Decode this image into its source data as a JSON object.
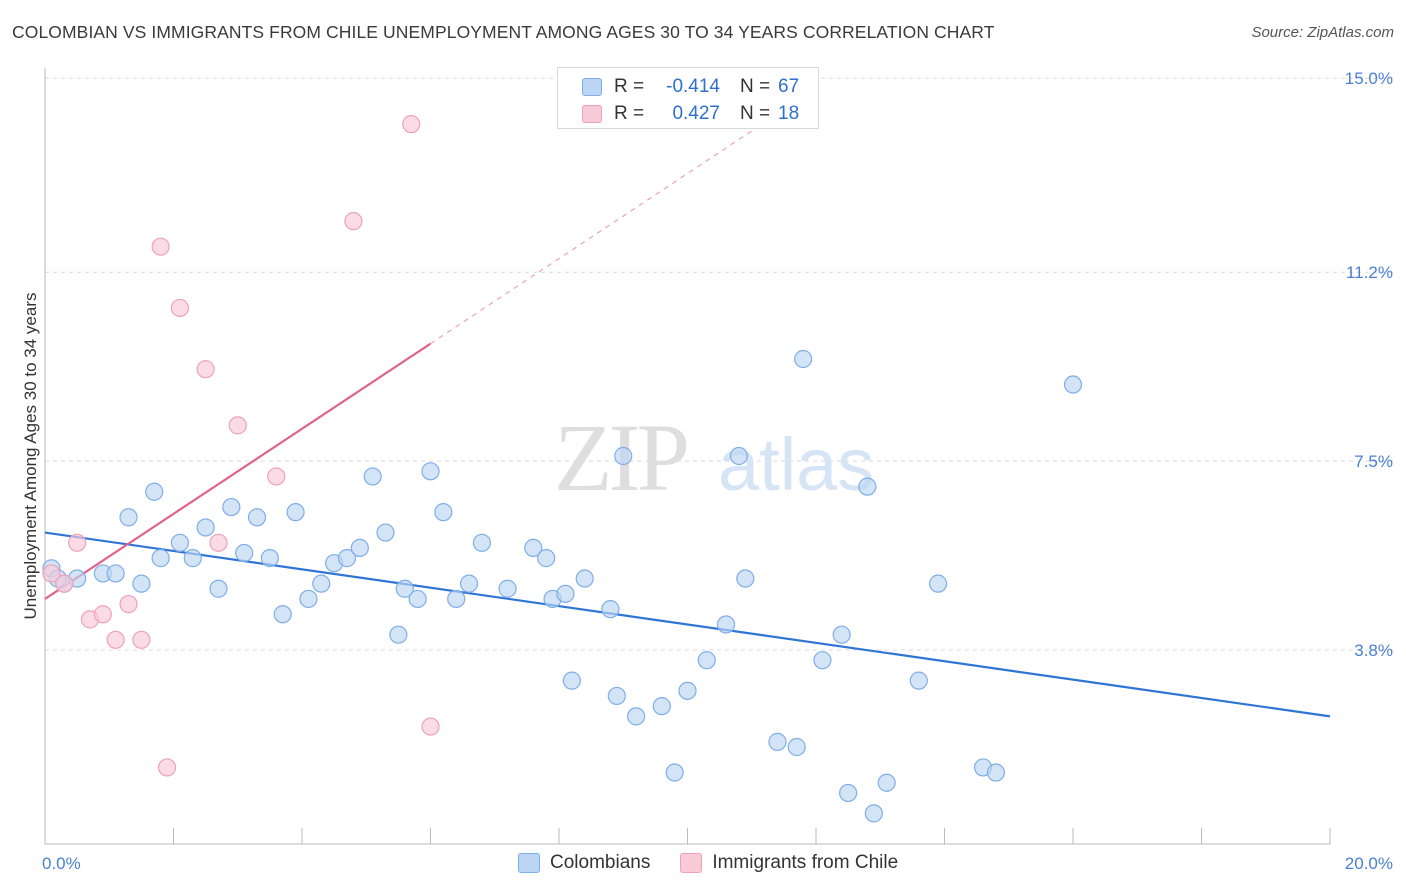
{
  "header": {
    "title": "COLOMBIAN VS IMMIGRANTS FROM CHILE UNEMPLOYMENT AMONG AGES 30 TO 34 YEARS CORRELATION CHART",
    "source": "Source: ZipAtlas.com"
  },
  "watermark": {
    "zip": "ZIP",
    "atlas": "atlas"
  },
  "legend": {
    "rows": [
      {
        "r_label": "R =",
        "r_value": "-0.414",
        "n_label": "N =",
        "n_value": "67",
        "color": "#7eaee8",
        "fill": "#bcd5f3"
      },
      {
        "r_label": "R =",
        "r_value": "0.427",
        "n_label": "N =",
        "n_value": "18",
        "color": "#f0a0bb",
        "fill": "#f9cad8"
      }
    ]
  },
  "bottom_legend": {
    "items": [
      {
        "label": "Colombians",
        "color": "#7eaee8",
        "fill": "#bcd5f3"
      },
      {
        "label": "Immigrants from Chile",
        "color": "#f0a0bb",
        "fill": "#f9cad8"
      }
    ]
  },
  "chart_data": {
    "type": "scatter",
    "title": "COLOMBIAN VS IMMIGRANTS FROM CHILE UNEMPLOYMENT AMONG AGES 30 TO 34 YEARS CORRELATION CHART",
    "xlabel": "",
    "ylabel": "Unemployment Among Ages 30 to 34 years",
    "xlim": [
      0,
      20
    ],
    "ylim": [
      0,
      15.2
    ],
    "x_tick_labels": [
      "0.0%",
      "20.0%"
    ],
    "y_ticks": [
      3.8,
      7.5,
      11.2,
      15.0
    ],
    "y_tick_labels": [
      "3.8%",
      "7.5%",
      "11.2%",
      "15.0%"
    ],
    "grid": true,
    "series": [
      {
        "name": "Colombians",
        "color": "#7eaee8",
        "fill": "#bcd5f3",
        "line_color": "#2f74d6",
        "trend": {
          "x": [
            0,
            20
          ],
          "y": [
            6.1,
            2.5
          ],
          "dashed_to": null
        },
        "points": [
          [
            0.1,
            5.4
          ],
          [
            0.3,
            5.1
          ],
          [
            0.5,
            5.2
          ],
          [
            0.9,
            5.3
          ],
          [
            1.1,
            5.3
          ],
          [
            1.3,
            6.4
          ],
          [
            1.5,
            5.1
          ],
          [
            1.7,
            6.9
          ],
          [
            1.8,
            5.6
          ],
          [
            2.1,
            5.9
          ],
          [
            2.3,
            5.6
          ],
          [
            2.5,
            6.2
          ],
          [
            2.7,
            5.0
          ],
          [
            2.9,
            6.6
          ],
          [
            3.1,
            5.7
          ],
          [
            3.3,
            6.4
          ],
          [
            3.5,
            5.6
          ],
          [
            3.7,
            4.5
          ],
          [
            3.9,
            6.5
          ],
          [
            4.1,
            4.8
          ],
          [
            4.3,
            5.1
          ],
          [
            4.5,
            5.5
          ],
          [
            4.7,
            5.6
          ],
          [
            4.9,
            5.8
          ],
          [
            5.1,
            7.2
          ],
          [
            5.3,
            6.1
          ],
          [
            5.5,
            4.1
          ],
          [
            5.6,
            5.0
          ],
          [
            5.8,
            4.8
          ],
          [
            6.0,
            7.3
          ],
          [
            6.2,
            6.5
          ],
          [
            6.4,
            4.8
          ],
          [
            6.6,
            5.1
          ],
          [
            6.8,
            5.9
          ],
          [
            7.2,
            5.0
          ],
          [
            7.6,
            5.8
          ],
          [
            7.8,
            5.6
          ],
          [
            7.9,
            4.8
          ],
          [
            8.1,
            4.9
          ],
          [
            8.2,
            3.2
          ],
          [
            8.4,
            5.2
          ],
          [
            8.8,
            4.6
          ],
          [
            8.9,
            2.9
          ],
          [
            9.2,
            2.5
          ],
          [
            9.6,
            2.7
          ],
          [
            9.8,
            1.4
          ],
          [
            10.0,
            3.0
          ],
          [
            10.3,
            3.6
          ],
          [
            10.6,
            4.3
          ],
          [
            10.8,
            7.6
          ],
          [
            10.9,
            5.2
          ],
          [
            11.4,
            2.0
          ],
          [
            11.7,
            1.9
          ],
          [
            11.8,
            9.5
          ],
          [
            12.1,
            3.6
          ],
          [
            12.4,
            4.1
          ],
          [
            12.5,
            1.0
          ],
          [
            12.8,
            7.0
          ],
          [
            12.9,
            0.6
          ],
          [
            13.1,
            1.2
          ],
          [
            13.6,
            3.2
          ],
          [
            13.9,
            5.1
          ],
          [
            14.6,
            1.5
          ],
          [
            14.8,
            1.4
          ],
          [
            16.0,
            9.0
          ],
          [
            9.0,
            7.6
          ],
          [
            0.2,
            5.2
          ]
        ]
      },
      {
        "name": "Immigrants from Chile",
        "color": "#f0a0bb",
        "fill": "#f9cad8",
        "line_color": "#e0638d",
        "trend": {
          "x": [
            0,
            6
          ],
          "y": [
            4.8,
            9.8
          ],
          "dashed_to": [
            12,
            14.8
          ]
        },
        "points": [
          [
            0.1,
            5.3
          ],
          [
            0.5,
            5.9
          ],
          [
            0.7,
            4.4
          ],
          [
            0.9,
            4.5
          ],
          [
            1.1,
            4.0
          ],
          [
            1.3,
            4.7
          ],
          [
            1.5,
            4.0
          ],
          [
            1.8,
            11.7
          ],
          [
            1.9,
            1.5
          ],
          [
            2.1,
            10.5
          ],
          [
            2.5,
            9.3
          ],
          [
            2.7,
            5.9
          ],
          [
            3.0,
            8.2
          ],
          [
            3.6,
            7.2
          ],
          [
            4.8,
            12.2
          ],
          [
            5.7,
            14.1
          ],
          [
            6.0,
            2.3
          ],
          [
            0.3,
            5.1
          ]
        ]
      }
    ]
  }
}
